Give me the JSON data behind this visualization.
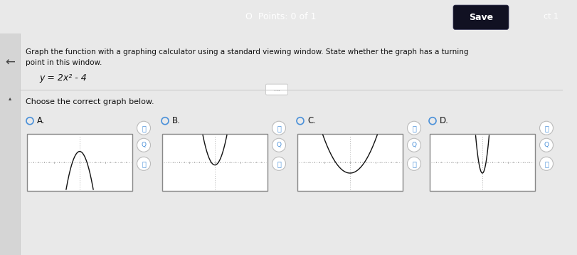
{
  "title_points": "Points: 0 of 1",
  "save_btn": "Save",
  "header_text1": "Graph the function with a graphing calculator using a standard viewing window. State whether the graph has a turning",
  "header_text2": "point in this window.",
  "equation": "y = 2x² - 4",
  "instruction": "Choose the correct graph below.",
  "labels": [
    "A.",
    "B.",
    "C.",
    "D."
  ],
  "header_bg": "#3a7bbf",
  "main_bg": "#e9e9e9",
  "content_bg": "#f5f5f5",
  "graph_bg": "#ffffff",
  "curve_color": "#111111",
  "radio_color": "#4a90d9",
  "text_color": "#111111",
  "axis_color": "#bbbbbb",
  "save_bg": "#1a1a2e",
  "icon_color": "#4a90d9",
  "graphs": [
    {
      "type": "A",
      "a": -2.0,
      "b": 0.0,
      "c": 4.0
    },
    {
      "type": "B",
      "a": 2.0,
      "b": 0.0,
      "c": -1.0
    },
    {
      "type": "C",
      "a": 0.5,
      "b": 0.0,
      "c": -4.0
    },
    {
      "type": "D",
      "a": 8.0,
      "b": 0.0,
      "c": -4.0
    }
  ],
  "graph_xlim": [
    -10,
    10
  ],
  "graph_ylim": [
    -10,
    10
  ]
}
